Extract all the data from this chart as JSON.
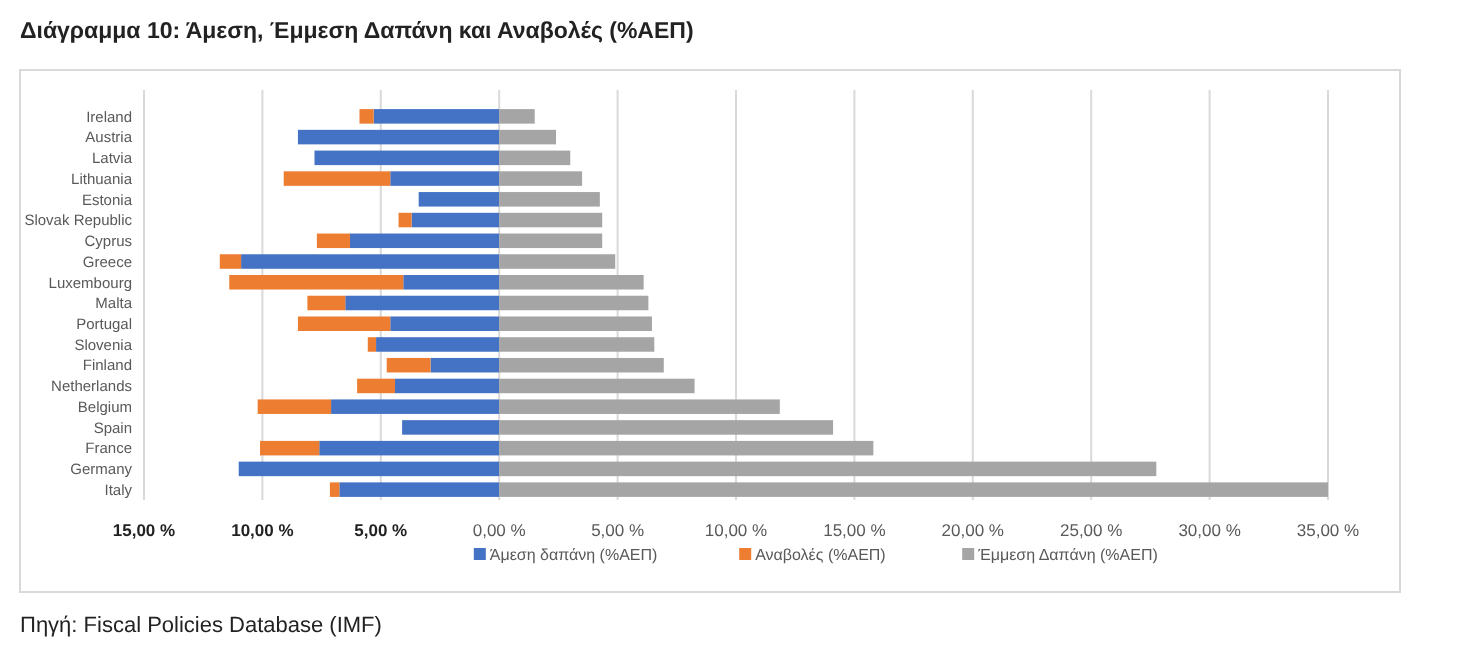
{
  "chart_data": {
    "type": "bar",
    "orientation": "horizontal",
    "stacked": true,
    "title": "Διάγραμμα 10:  Άμεση, Έμμεση Δαπάνη και Αναβολές (%ΑΕΠ)",
    "annotations": [
      "Πηγή: Fiscal Policies Database (IMF)"
    ],
    "categories": [
      "Ireland",
      "Austria",
      "Latvia",
      "Lithuania",
      "Estonia",
      "Slovak Republic",
      "Cyprus",
      "Greece",
      "Luxembourg",
      "Malta",
      "Portugal",
      "Slovenia",
      "Finland",
      "Netherlands",
      "Belgium",
      "Spain",
      "France",
      "Germany",
      "Italy"
    ],
    "series": [
      {
        "name": "Άμεση δαπάνη (%ΑΕΠ)",
        "color": "#4472c4",
        "values": [
          -5.3,
          -8.5,
          -7.8,
          -4.6,
          -3.4,
          -3.7,
          -6.3,
          -10.9,
          -4.05,
          -6.5,
          -4.6,
          -5.2,
          -2.9,
          -4.4,
          -7.1,
          -4.1,
          -7.6,
          -11.0,
          -6.75
        ]
      },
      {
        "name": "Αναβολές (%ΑΕΠ)",
        "color": "#ed7d31",
        "values": [
          -0.6,
          0,
          0,
          -4.5,
          0,
          -0.55,
          -1.4,
          -0.9,
          -7.35,
          -1.6,
          -3.9,
          -0.35,
          -1.85,
          -1.6,
          -3.1,
          0,
          -2.5,
          0,
          -0.4
        ]
      },
      {
        "name": "Έμμεση Δαπάνη (%ΑΕΠ)",
        "color": "#a5a5a5",
        "values": [
          1.5,
          2.4,
          3.0,
          3.5,
          4.25,
          4.35,
          4.35,
          4.9,
          6.1,
          6.3,
          6.45,
          6.55,
          6.95,
          8.25,
          11.85,
          14.1,
          15.8,
          27.75,
          35.0
        ]
      }
    ],
    "xlim": [
      -15,
      35
    ],
    "xticks": [
      {
        "value": -15,
        "label": "15,00 %"
      },
      {
        "value": -10,
        "label": "10,00 %"
      },
      {
        "value": -5,
        "label": "5,00 %"
      },
      {
        "value": 0,
        "label": "0,00 %"
      },
      {
        "value": 5,
        "label": "5,00 %"
      },
      {
        "value": 10,
        "label": "10,00 %"
      },
      {
        "value": 15,
        "label": "15,00 %"
      },
      {
        "value": 20,
        "label": "20,00 %"
      },
      {
        "value": 25,
        "label": "25,00 %"
      },
      {
        "value": 30,
        "label": "30,00 %"
      },
      {
        "value": 35,
        "label": "35,00 %"
      }
    ],
    "grid": "x",
    "legend": "bottom"
  }
}
